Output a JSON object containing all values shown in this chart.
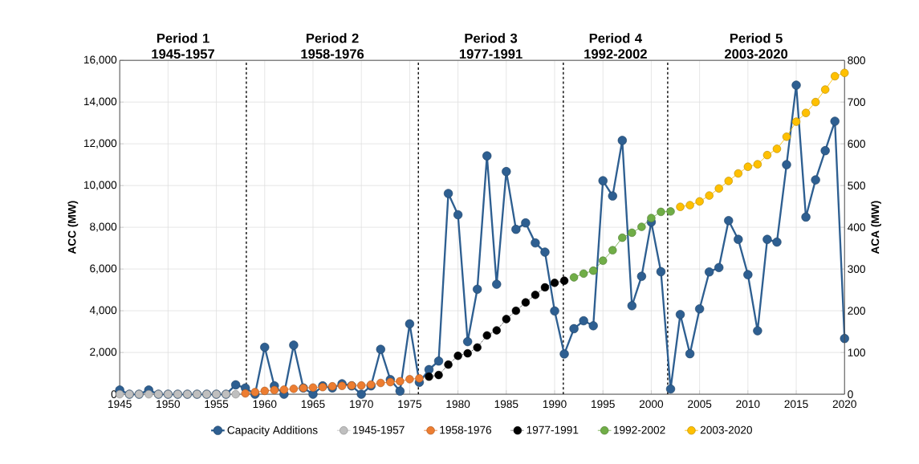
{
  "chart_data": {
    "type": "line",
    "xlabel": null,
    "ylabel": "ACC (MW)",
    "y2label": "ACA (MW)",
    "xlim": [
      1945,
      2020
    ],
    "xticks": [
      1945,
      1950,
      1955,
      1960,
      1965,
      1970,
      1975,
      1980,
      1985,
      1990,
      1995,
      2000,
      2005,
      2010,
      2015,
      2020
    ],
    "ylim": [
      0,
      16000
    ],
    "yticks": [
      0,
      {
        "value": 2000,
        "label": "2,000"
      },
      {
        "value": 4000,
        "label": "4,000"
      },
      {
        "value": 6000,
        "label": "6,000"
      },
      {
        "value": 8000,
        "label": "8,000"
      },
      {
        "value": 10000,
        "label": "10,000"
      },
      {
        "value": 12000,
        "label": "12,000"
      },
      {
        "value": 14000,
        "label": "14,000"
      },
      {
        "value": 16000,
        "label": "16,000"
      }
    ],
    "y2lim": [
      0,
      800
    ],
    "y2ticks": [
      0,
      100,
      200,
      300,
      400,
      500,
      600,
      700,
      800
    ],
    "grid": true,
    "legend": "bottom",
    "marker": "circle",
    "series": [
      {
        "name": "Capacity Additions",
        "color": "#2e5f91",
        "axis": "y",
        "line_style": "solid",
        "x": [
          1945,
          1946,
          1947,
          1948,
          1949,
          1950,
          1951,
          1952,
          1953,
          1954,
          1955,
          1956,
          1957,
          1958,
          1959,
          1960,
          1961,
          1962,
          1963,
          1964,
          1965,
          1966,
          1967,
          1968,
          1969,
          1970,
          1971,
          1972,
          1973,
          1974,
          1975,
          1976,
          1977,
          1978,
          1979,
          1980,
          1981,
          1982,
          1983,
          1984,
          1985,
          1986,
          1987,
          1988,
          1989,
          1990,
          1991,
          1992,
          1993,
          1994,
          1995,
          1996,
          1997,
          1998,
          1999,
          2000,
          2001,
          2002,
          2003,
          2004,
          2005,
          2006,
          2007,
          2008,
          2009,
          2010,
          2011,
          2012,
          2013,
          2014,
          2015,
          2016,
          2017,
          2018,
          2019,
          2020
        ],
        "values": [
          200,
          0,
          0,
          200,
          0,
          0,
          0,
          0,
          0,
          0,
          0,
          0,
          450,
          300,
          0,
          2250,
          400,
          0,
          2350,
          300,
          0,
          400,
          300,
          500,
          400,
          0,
          400,
          2150,
          700,
          150,
          3370,
          570,
          1180,
          1590,
          9620,
          8600,
          2520,
          5030,
          11420,
          5270,
          10670,
          7900,
          8210,
          7250,
          6810,
          3990,
          1930,
          3140,
          3520,
          3280,
          10230,
          9500,
          12160,
          4240,
          5650,
          8250,
          5870,
          250,
          3820,
          1940,
          4090,
          5860,
          6070,
          8320,
          7420,
          5730,
          3040,
          7420,
          7290,
          11000,
          14810,
          8490,
          10270,
          11670,
          13080,
          2670
        ]
      },
      {
        "name": "1945-1957",
        "color": "#bfbfbf",
        "axis": "y2",
        "line_style": "solid",
        "x": [
          1945,
          1946,
          1947,
          1948,
          1949,
          1950,
          1951,
          1952,
          1953,
          1954,
          1955,
          1956,
          1957
        ],
        "values": [
          0,
          0,
          0,
          0,
          0,
          0,
          0,
          0,
          0,
          0,
          0,
          0,
          0
        ]
      },
      {
        "name": "1958-1976",
        "color": "#ed7d31",
        "axis": "y2",
        "line_style": "solid",
        "x": [
          1958,
          1959,
          1960,
          1961,
          1962,
          1963,
          1964,
          1965,
          1966,
          1967,
          1968,
          1969,
          1970,
          1971,
          1972,
          1973,
          1974,
          1975,
          1976
        ],
        "values": [
          2,
          5,
          8,
          10,
          11,
          13,
          15,
          16,
          17,
          19,
          20,
          21,
          21,
          23,
          27,
          29,
          31,
          36,
          38
        ]
      },
      {
        "name": "1977-1991",
        "color": "#000000",
        "axis": "y2",
        "line_style": "dotted",
        "x": [
          1977,
          1978,
          1979,
          1980,
          1981,
          1982,
          1983,
          1984,
          1985,
          1986,
          1987,
          1988,
          1989,
          1990,
          1991
        ],
        "values": [
          42,
          46,
          71,
          92,
          98,
          112,
          141,
          153,
          180,
          200,
          220,
          238,
          256,
          267,
          272
        ]
      },
      {
        "name": "1992-2002",
        "color": "#70ad47",
        "axis": "y2",
        "line_style": "solid",
        "x": [
          1992,
          1993,
          1994,
          1995,
          1996,
          1997,
          1998,
          1999,
          2000,
          2001,
          2002
        ],
        "values": [
          280,
          289,
          296,
          320,
          345,
          375,
          387,
          401,
          422,
          437,
          438
        ]
      },
      {
        "name": "2003-2020",
        "color": "#ffc000",
        "axis": "y2",
        "line_style": "solid",
        "x": [
          2003,
          2004,
          2005,
          2006,
          2007,
          2008,
          2009,
          2010,
          2011,
          2012,
          2013,
          2014,
          2015,
          2016,
          2017,
          2018,
          2019,
          2020
        ],
        "values": [
          449,
          453,
          462,
          476,
          493,
          511,
          529,
          545,
          551,
          573,
          588,
          617,
          653,
          674,
          700,
          730,
          762,
          770
        ]
      }
    ],
    "ref_lines": [
      {
        "axis": "x",
        "value": 1958.1,
        "color": "#000000",
        "line_style": "dashed"
      },
      {
        "axis": "x",
        "value": 1975.9,
        "color": "#000000",
        "line_style": "dashed"
      },
      {
        "axis": "x",
        "value": 1990.9,
        "color": "#000000",
        "line_style": "dashed"
      },
      {
        "axis": "x",
        "value": 2001.7,
        "color": "#000000",
        "line_style": "dashed"
      }
    ],
    "annotations": [
      "Period 1 1945-1957",
      "Period 2 1958-1976",
      "Period 3 1977-1991",
      "Period 4 1992-2002",
      "Period 5 2003-2020"
    ]
  }
}
